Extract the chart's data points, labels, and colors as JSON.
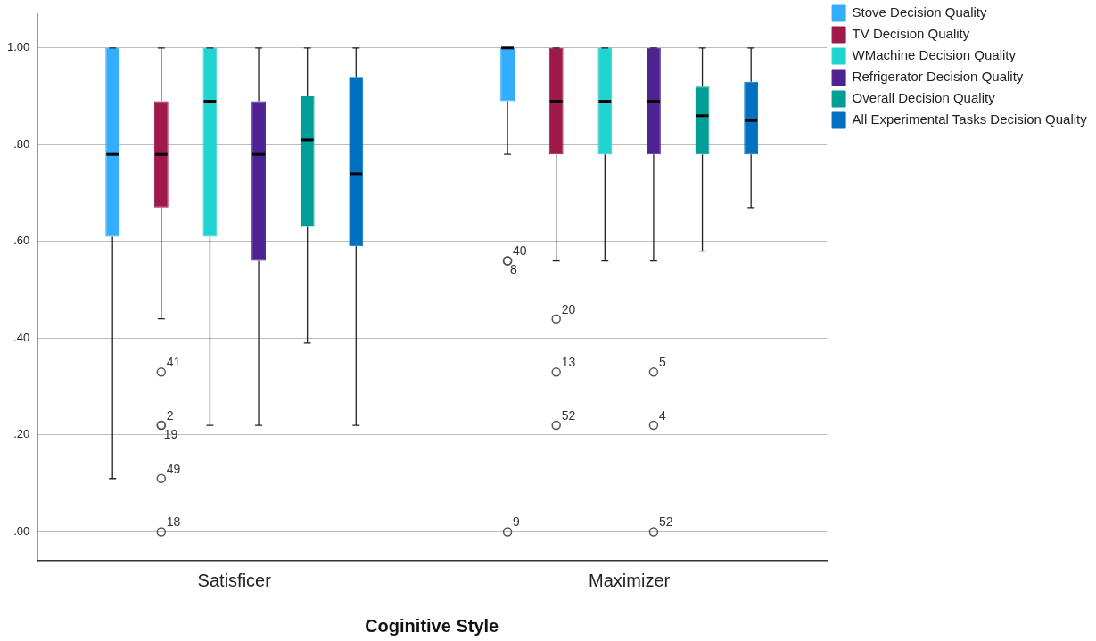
{
  "chart_data": {
    "type": "box",
    "xlabel": "Coginitive Style",
    "categories": [
      "Satisficer",
      "Maximizer"
    ],
    "ylim": [
      -0.06,
      1.07
    ],
    "yticks": [
      {
        "value": 0,
        "label": ".00"
      },
      {
        "value": 0.2,
        "label": ".20"
      },
      {
        "value": 0.4,
        "label": ".40"
      },
      {
        "value": 0.6,
        "label": ".60"
      },
      {
        "value": 0.8,
        "label": ".80"
      },
      {
        "value": 1,
        "label": "1.00"
      }
    ],
    "grid": "y",
    "legend": "top right",
    "series": [
      {
        "name": "Stove Decision Quality",
        "color": "#33adff",
        "boxes": [
          {
            "low": 0.11,
            "q1": 0.61,
            "median": 0.78,
            "q3": 1.0,
            "high": 1.0
          },
          {
            "low": 0.78,
            "q1": 0.89,
            "median": 1.0,
            "q3": 1.0,
            "high": 1.0,
            "outliers": [
              0.56,
              0.56,
              0
            ]
          }
        ]
      },
      {
        "name": "TV Decision Quality",
        "color": "#a0194b",
        "boxes": [
          {
            "low": 0.44,
            "q1": 0.67,
            "median": 0.78,
            "q3": 0.89,
            "high": 1.0,
            "outliers": [
              0.33,
              0.22,
              0.22,
              0.11,
              0
            ]
          },
          {
            "low": 0.56,
            "q1": 0.78,
            "median": 0.89,
            "q3": 1.0,
            "high": 1.0,
            "outliers": [
              0.44,
              0.33,
              0.22
            ]
          }
        ]
      },
      {
        "name": "WMachine Decision Quality",
        "color": "#21d4d0",
        "boxes": [
          {
            "low": 0.22,
            "q1": 0.61,
            "median": 0.89,
            "q3": 1.0,
            "high": 1.0
          },
          {
            "low": 0.56,
            "q1": 0.78,
            "median": 0.89,
            "q3": 1.0,
            "high": 1.0
          }
        ]
      },
      {
        "name": "Refrigerator Decision Quality",
        "color": "#4e2391",
        "boxes": [
          {
            "low": 0.22,
            "q1": 0.56,
            "median": 0.78,
            "q3": 0.89,
            "high": 1.0
          },
          {
            "low": 0.56,
            "q1": 0.78,
            "median": 0.89,
            "q3": 1.0,
            "high": 1.0,
            "outliers": [
              0.33,
              0.22,
              0
            ]
          }
        ]
      },
      {
        "name": "Overall Decision Quality",
        "color": "#009e96",
        "boxes": [
          {
            "low": 0.39,
            "q1": 0.63,
            "median": 0.81,
            "q3": 0.9,
            "high": 1.0
          },
          {
            "low": 0.58,
            "q1": 0.78,
            "median": 0.86,
            "q3": 0.92,
            "high": 1.0
          }
        ]
      },
      {
        "name": "All Experimental Tasks Decision Quality",
        "color": "#0070c1",
        "boxes": [
          {
            "low": 0.22,
            "q1": 0.59,
            "median": 0.74,
            "q3": 0.94,
            "high": 1.0
          },
          {
            "low": 0.67,
            "q1": 0.78,
            "median": 0.85,
            "q3": 0.93,
            "high": 1.0
          }
        ]
      }
    ],
    "annotations": [
      "41",
      "2",
      "19",
      "49",
      "18",
      "40",
      "8",
      "9",
      "20",
      "13",
      "52",
      "5",
      "4",
      "52"
    ]
  }
}
